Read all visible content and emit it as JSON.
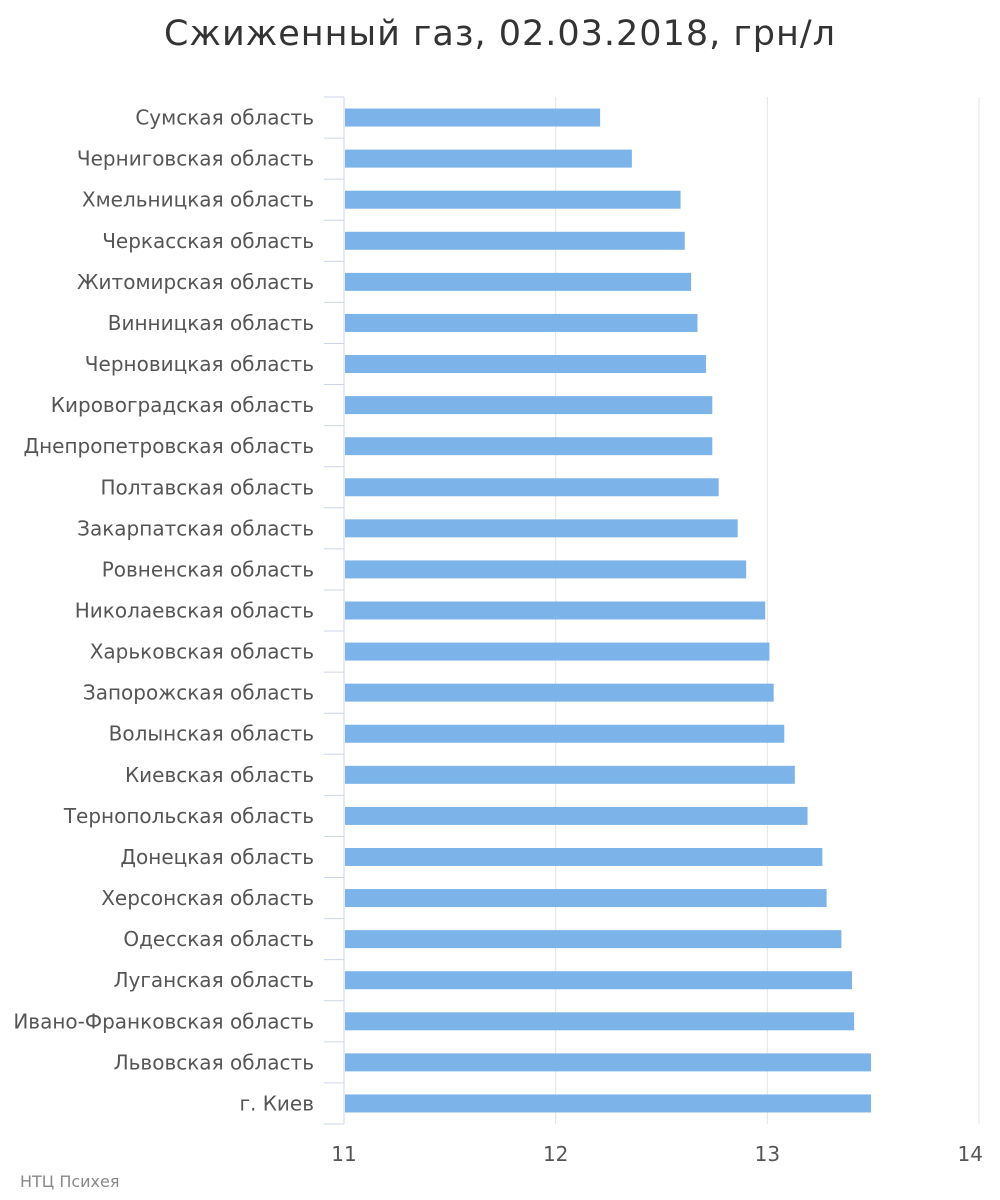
{
  "title": "Сжиженный газ, 02.03.2018, грн/л",
  "credit": "НТЦ Психея",
  "chart_data": {
    "type": "bar",
    "orientation": "horizontal",
    "title": "Сжиженный газ, 02.03.2018, грн/л",
    "xlabel": "",
    "ylabel": "",
    "xlim": [
      11,
      14
    ],
    "ticks": [
      "11",
      "12",
      "13",
      "14"
    ],
    "grid": true,
    "bar_color": "#7cb4ea",
    "categories": [
      "Сумская область",
      "Черниговская область",
      "Хмельницкая область",
      "Черкасская область",
      "Житомирская область",
      "Винницкая область",
      "Черновицкая область",
      "Кировоградская область",
      "Днепропетровская область",
      "Полтавская область",
      "Закарпатская область",
      "Ровненская область",
      "Николаевская область",
      "Харьковская область",
      "Запорожская область",
      "Волынская область",
      "Киевская область",
      "Тернопольская область",
      "Донецкая область",
      "Херсонская область",
      "Одесская область",
      "Луганская область",
      "Ивано-Франковская область",
      "Львовская область",
      "г. Киев"
    ],
    "values": [
      12.21,
      12.36,
      12.59,
      12.61,
      12.64,
      12.67,
      12.71,
      12.74,
      12.74,
      12.77,
      12.86,
      12.9,
      12.99,
      13.01,
      13.03,
      13.08,
      13.13,
      13.19,
      13.26,
      13.28,
      13.35,
      13.4,
      13.41,
      13.49,
      13.49
    ]
  }
}
